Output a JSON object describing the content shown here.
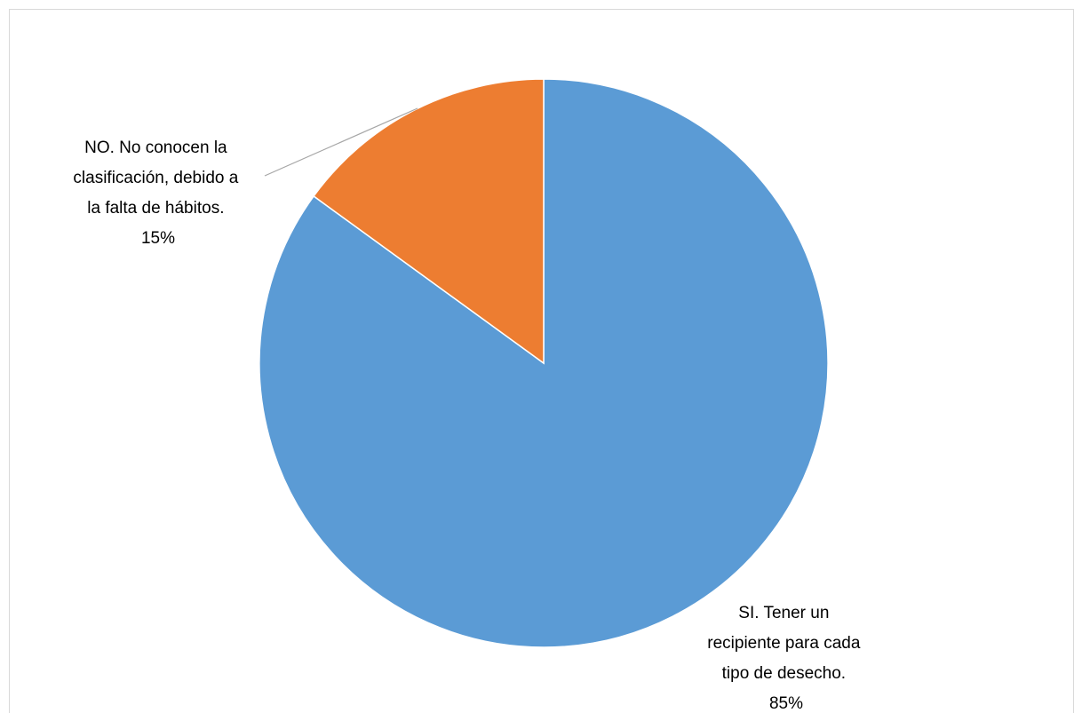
{
  "chart_data": {
    "type": "pie",
    "title": "",
    "start_angle_deg": 0,
    "direction": "clockwise",
    "colors": {
      "si": "#5B9BD5",
      "no": "#ED7D31",
      "leader": "#a6a6a6",
      "border": "#d9d9d9"
    },
    "slices": [
      {
        "key": "si",
        "value": 85,
        "color": "#5B9BD5",
        "label_lines": [
          "SI. Tener un",
          "recipiente para cada",
          "tipo de  desecho.",
          "85%"
        ]
      },
      {
        "key": "no",
        "value": 15,
        "color": "#ED7D31",
        "label_lines": [
          "NO. No conocen la",
          "clasificación, debido a",
          "la falta de hábitos.",
          "15%"
        ]
      }
    ]
  }
}
